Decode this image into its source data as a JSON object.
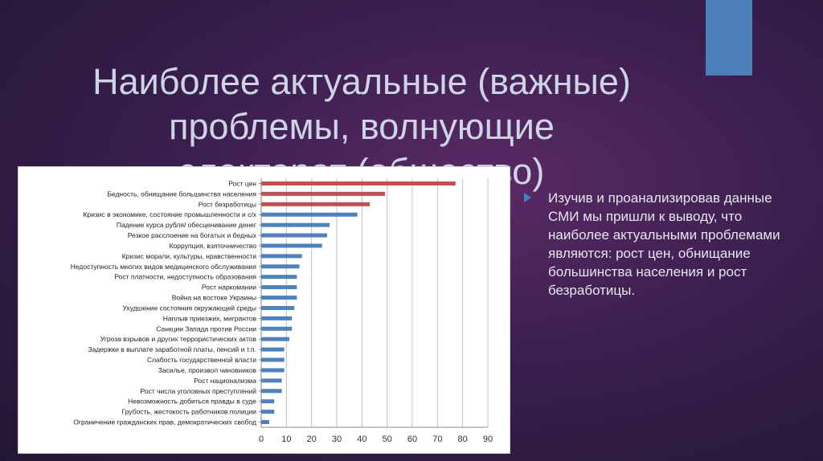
{
  "slide": {
    "title_lines": [
      "Наиболее актуальные (важные)",
      "проблемы, волнующие",
      "электорат (общество)"
    ],
    "bullet_text": "Изучив и проанализировав данные СМИ мы пришли к выводу, что наиболее актуальными проблемами являются: рост цен, обнищание большинства населения и рост безработицы.",
    "accent_color": "#4b7fb8"
  },
  "chart_data": {
    "type": "bar",
    "orientation": "horizontal",
    "categories": [
      "Рост цен",
      "Бедность, обнищание большинства населения",
      "Рост безработицы",
      "Кризис в экономике, состояние промышленности  и с/х",
      "Падение курса рубля/ обесценивание денег",
      "Резкое расслоение на богатых и бедных",
      "Коррупция, взяточничество",
      "Кризис морали, культуры, нравственности",
      "Недоступность многих видов медицинского обслуживания",
      "Рост платности, недоступность образования",
      "Рост наркомании",
      "Война на востоке Украины",
      "Ухудшение состояния окружающей среды",
      "Наплыв приезжих, мигрантов",
      "Санкции Запада против России",
      "Угроза взрывов и других террористических актов",
      "Задержки в выплате заработной платы, пенсий и т.п.",
      "Слабость государственной власти",
      "Засилье, произвол чиновников",
      "Рост национализма",
      "Рост числа уголовных преступлений",
      "Невозможность добиться правды в суде",
      "Грубость, жестокость работников полиции",
      "Ограничение гражданских прав, демократических свобод"
    ],
    "values": [
      77,
      49,
      43,
      38,
      27,
      26,
      24,
      16,
      15,
      14,
      14,
      14,
      13,
      12,
      12,
      11,
      9,
      9,
      9,
      8,
      8,
      5,
      5,
      3
    ],
    "highlight_count": 3,
    "highlight_color": "#c0504d",
    "bar_color": "#4f81bd",
    "xlim": [
      0,
      90
    ],
    "xticks": [
      0,
      10,
      20,
      30,
      40,
      50,
      60,
      70,
      80,
      90
    ],
    "grid": true,
    "legend": "none"
  }
}
